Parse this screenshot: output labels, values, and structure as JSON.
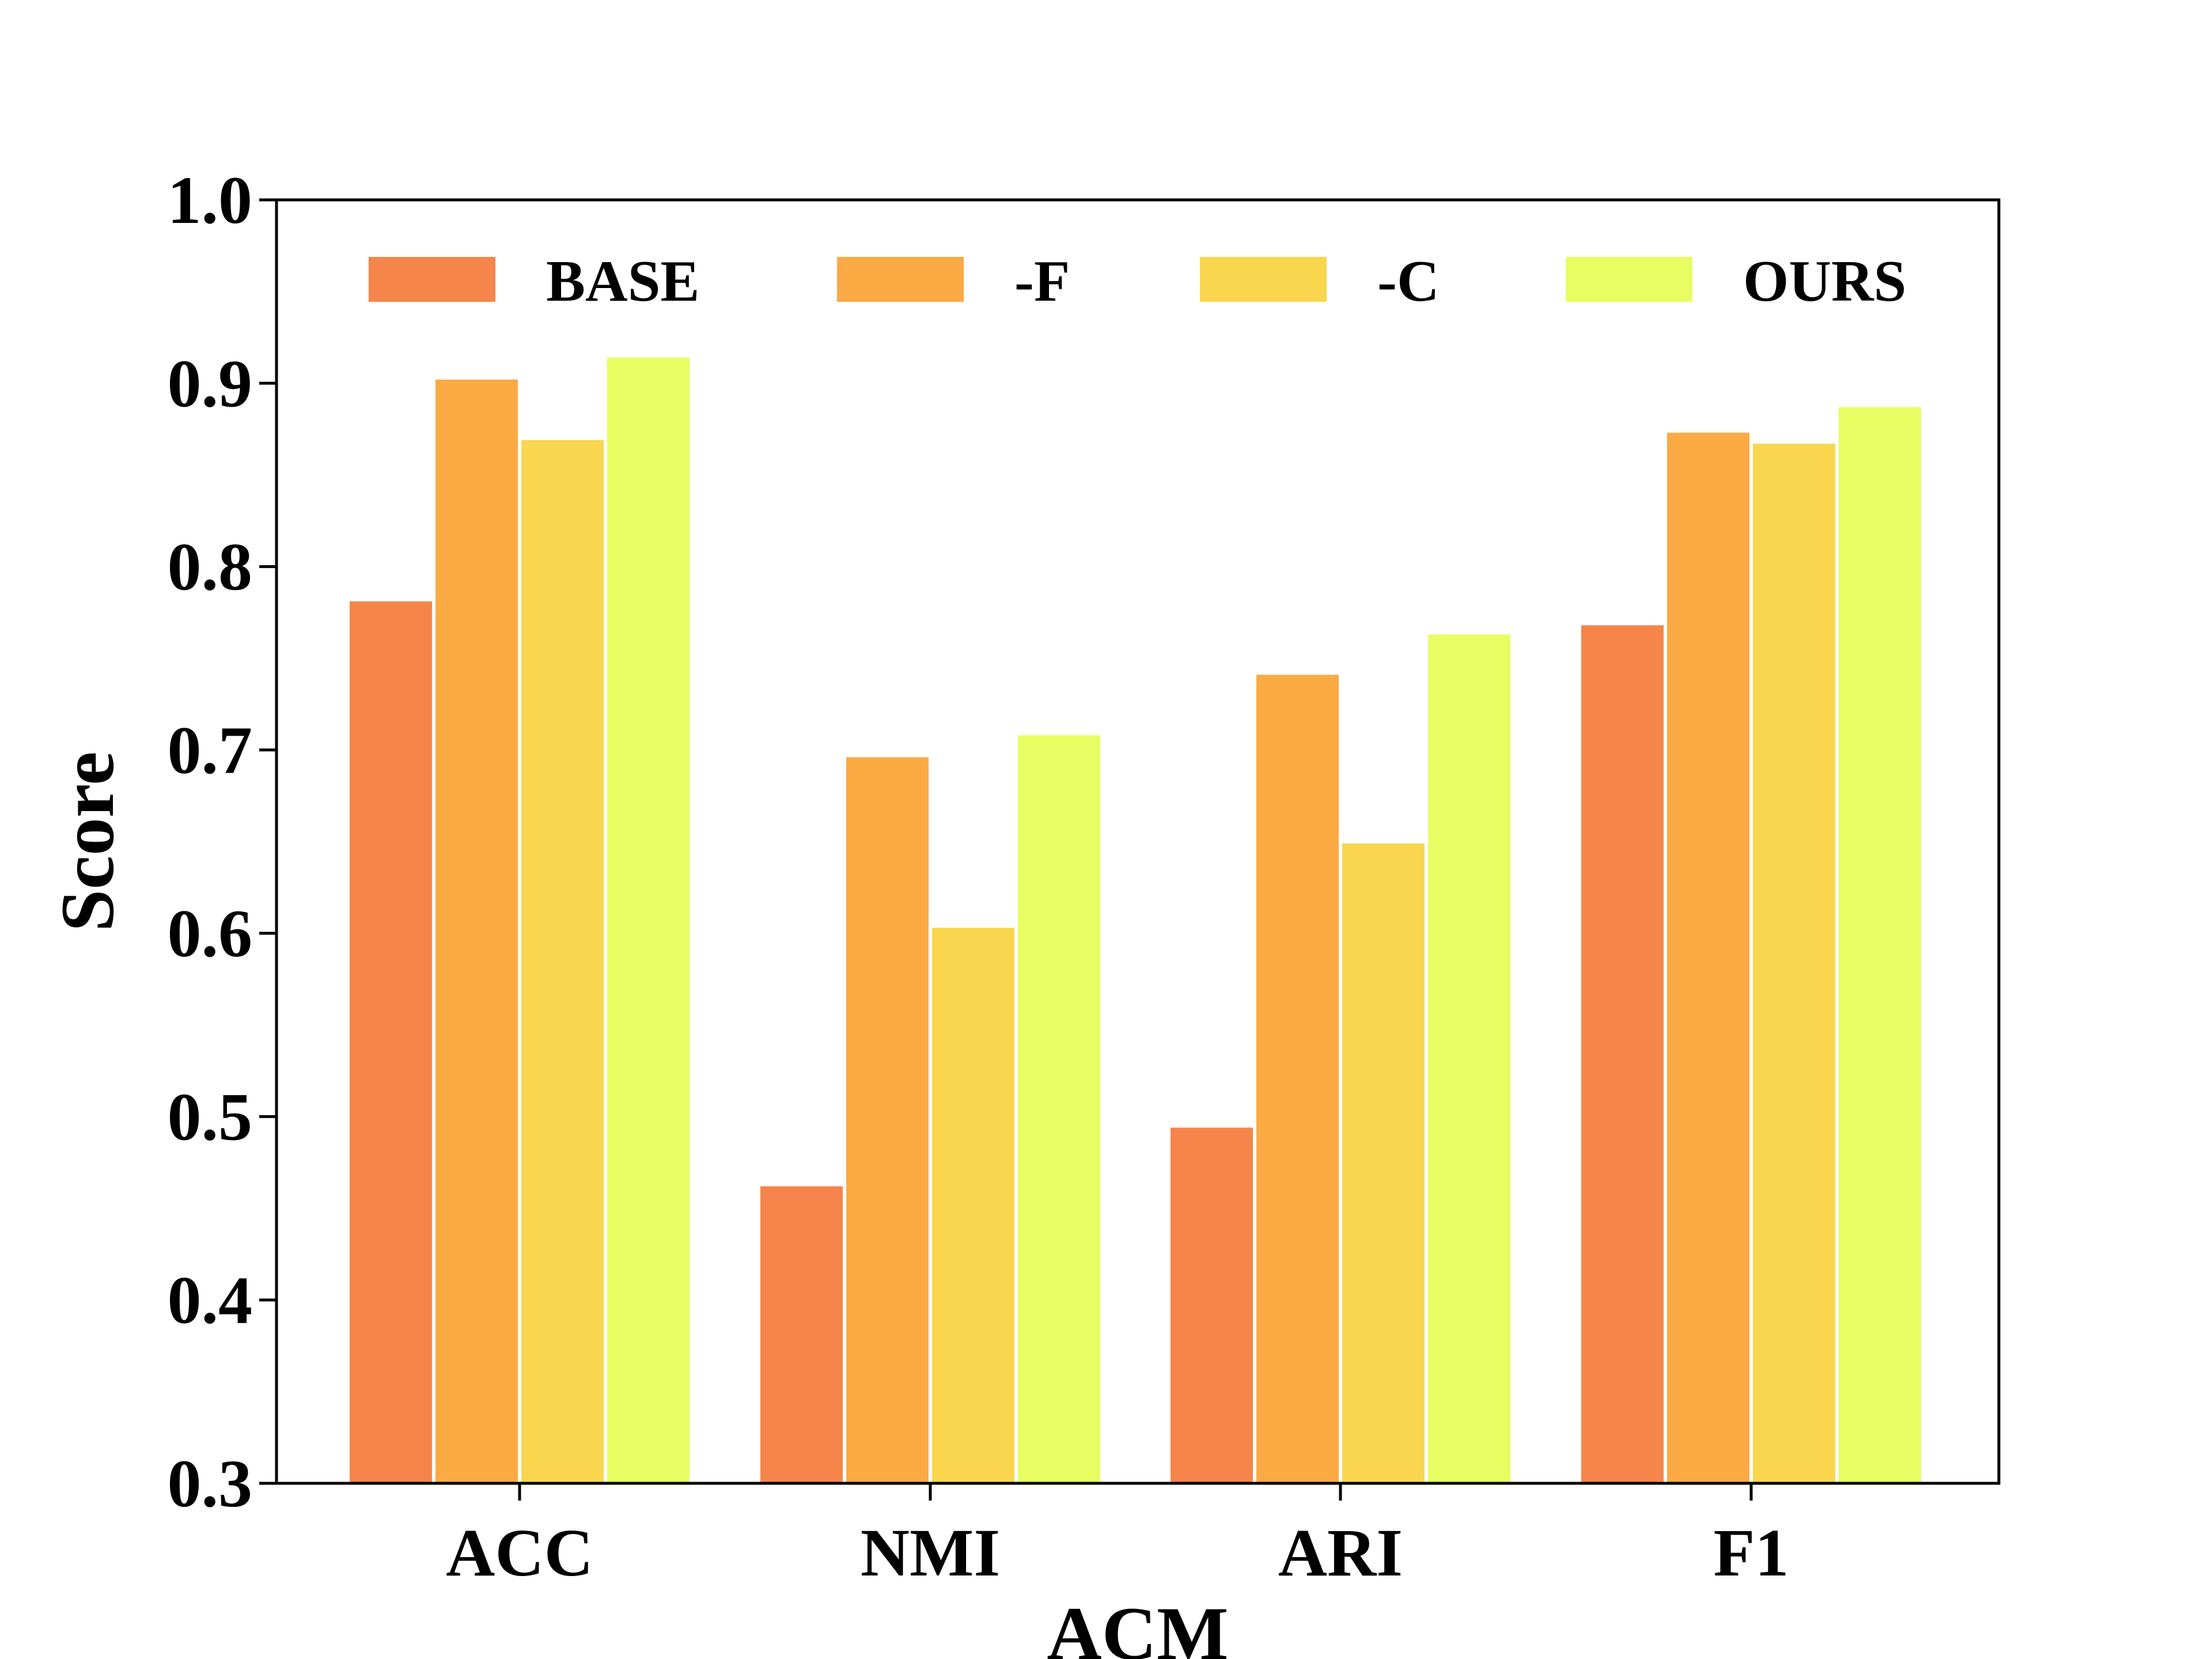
{
  "chart_data": {
    "type": "bar",
    "xlabel": "ACM",
    "ylabel": "Score",
    "ylim": [
      0.3,
      1.0
    ],
    "yticks": [
      "0.3",
      "0.4",
      "0.5",
      "0.6",
      "0.7",
      "0.8",
      "0.9",
      "1.0"
    ],
    "categories": [
      "ACC",
      "NMI",
      "ARI",
      "F1"
    ],
    "legend_position": "top",
    "grid": false,
    "series": [
      {
        "name": "BASE",
        "color": "#F5854B",
        "values": [
          0.781,
          0.462,
          0.494,
          0.768
        ]
      },
      {
        "name": "-F",
        "color": "#FBAA44",
        "values": [
          0.902,
          0.696,
          0.741,
          0.873
        ]
      },
      {
        "name": "-C",
        "color": "#FAD64F",
        "values": [
          0.869,
          0.603,
          0.649,
          0.867
        ]
      },
      {
        "name": "OURS",
        "color": "#E8FD62",
        "values": [
          0.914,
          0.708,
          0.763,
          0.887
        ]
      }
    ]
  }
}
